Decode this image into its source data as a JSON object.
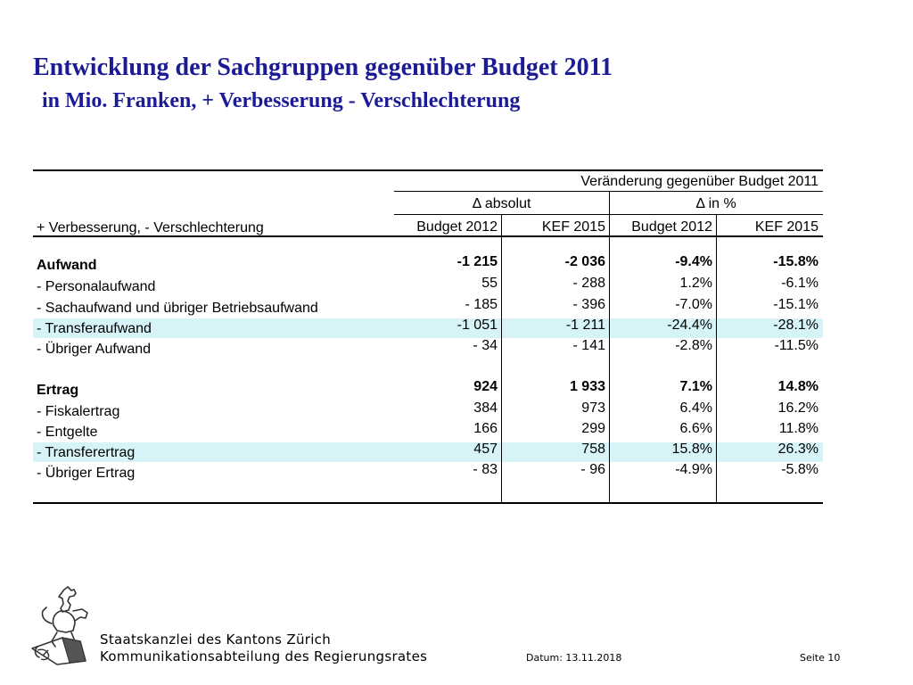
{
  "slide": {
    "title": "Entwicklung der Sachgruppen gegenüber Budget 2011",
    "subtitle": "in Mio. Franken, + Verbesserung - Verschlechterung"
  },
  "table": {
    "header_group": "Veränderung gegenüber Budget 2011",
    "header_abs": "Δ absolut",
    "header_pct": "Δ in %",
    "row_label_header": "+ Verbesserung, - Verschlechterung",
    "columns": [
      "Budget 2012",
      "KEF 2015",
      "Budget 2012",
      "KEF 2015"
    ],
    "rows": [
      {
        "label": "Aufwand",
        "bold": true,
        "highlight": false,
        "values": [
          "-1 215",
          "-2 036",
          "-9.4%",
          "-15.8%"
        ]
      },
      {
        "label": "- Personalaufwand",
        "bold": false,
        "highlight": false,
        "values": [
          "55",
          "- 288",
          "1.2%",
          "-6.1%"
        ]
      },
      {
        "label": "- Sachaufwand und übriger Betriebsaufwand",
        "bold": false,
        "highlight": false,
        "values": [
          "- 185",
          "- 396",
          "-7.0%",
          "-15.1%"
        ]
      },
      {
        "label": "- Transferaufwand",
        "bold": false,
        "highlight": true,
        "values": [
          "-1 051",
          "-1 211",
          "-24.4%",
          "-28.1%"
        ]
      },
      {
        "label": "- Übriger Aufwand",
        "bold": false,
        "highlight": false,
        "values": [
          "- 34",
          "- 141",
          "-2.8%",
          "-11.5%"
        ]
      },
      {
        "label": "Ertrag",
        "bold": true,
        "highlight": false,
        "values": [
          "924",
          "1 933",
          "7.1%",
          "14.8%"
        ]
      },
      {
        "label": "- Fiskalertrag",
        "bold": false,
        "highlight": false,
        "values": [
          "384",
          "973",
          "6.4%",
          "16.2%"
        ]
      },
      {
        "label": "- Entgelte",
        "bold": false,
        "highlight": false,
        "values": [
          "166",
          "299",
          "6.6%",
          "11.8%"
        ]
      },
      {
        "label": "- Transferertrag",
        "bold": false,
        "highlight": true,
        "values": [
          "457",
          "758",
          "15.8%",
          "26.3%"
        ]
      },
      {
        "label": "- Übriger Ertrag",
        "bold": false,
        "highlight": false,
        "values": [
          "- 83",
          "- 96",
          "-4.9%",
          "-5.8%"
        ]
      }
    ],
    "highlight_color": "#d6f4f8"
  },
  "footer": {
    "org_line1": "Staatskanzlei des Kantons Zürich",
    "org_line2": "Kommunikationsabteilung des Regierungsrates",
    "date": "Datum: 13.11.2018",
    "page": "Seite 10",
    "logo_icon": "zurich-lion-coat-of-arms-icon"
  },
  "colors": {
    "title": "#1b1b96"
  }
}
